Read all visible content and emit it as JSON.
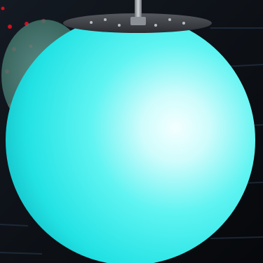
{
  "scene": {
    "subject": "glowing-sphere-pendant-lamp",
    "colors": {
      "background": "#0a0d12",
      "sphere_core": "#eaffff",
      "sphere_mid": "#3ff0f0",
      "sphere_edge": "#0fbcc4",
      "ghost_sphere": "#4a7f78",
      "cap_metal": "#3a3d42",
      "rod_metal": "#9aa0a6",
      "dot_accent": "#d01020",
      "streak_light": "#2a3a4a"
    }
  }
}
